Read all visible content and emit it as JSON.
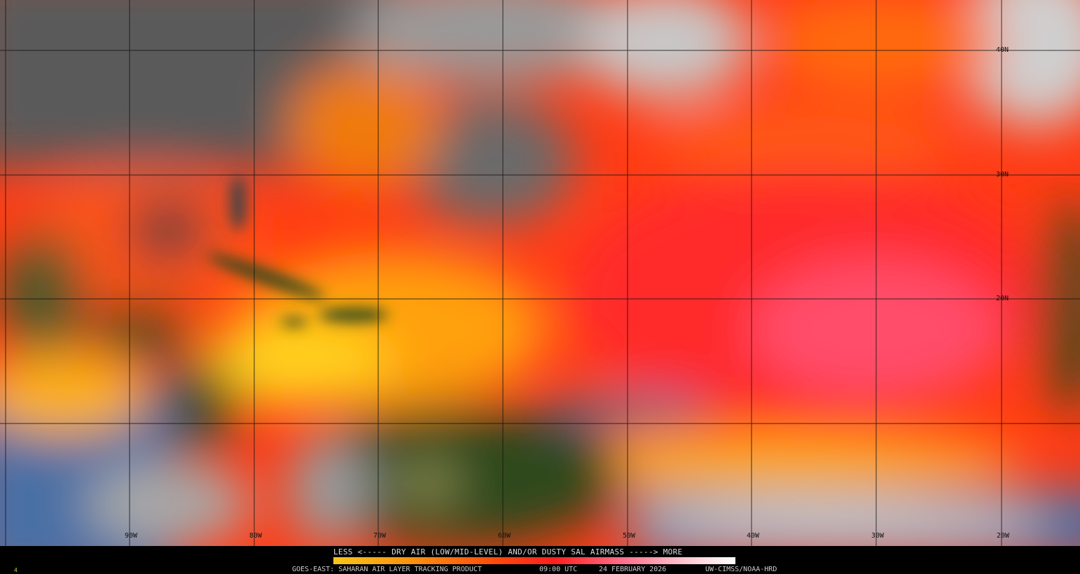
{
  "map": {
    "longitude_labels": [
      "90W",
      "80W",
      "70W",
      "60W",
      "50W",
      "40W",
      "30W",
      "20W"
    ],
    "latitude_labels": [
      "40N",
      "30N",
      "20N"
    ],
    "colors": {
      "ocean_clear": "#4a6fa5",
      "land": "#2f4a1a",
      "cloud": "#d8d8d8",
      "dry_low": "#f7c51a",
      "dry_mid": "#fc4b0c",
      "dry_high": "#ff8ca0"
    }
  },
  "legend": {
    "title": "LESS <----- DRY AIR (LOW/MID-LEVEL) AND/OR DUSTY SAL AIRMASS -----> MORE",
    "scale_low": "LESS",
    "scale_high": "MORE"
  },
  "footer": {
    "product": "GOES-EAST: SAHARAN AIR LAYER TRACKING PRODUCT",
    "time": "09:00 UTC",
    "date": "24 FEBRUARY 2026",
    "credit": "UW-CIMSS/NOAA-HRD",
    "corner_mark": "4"
  }
}
